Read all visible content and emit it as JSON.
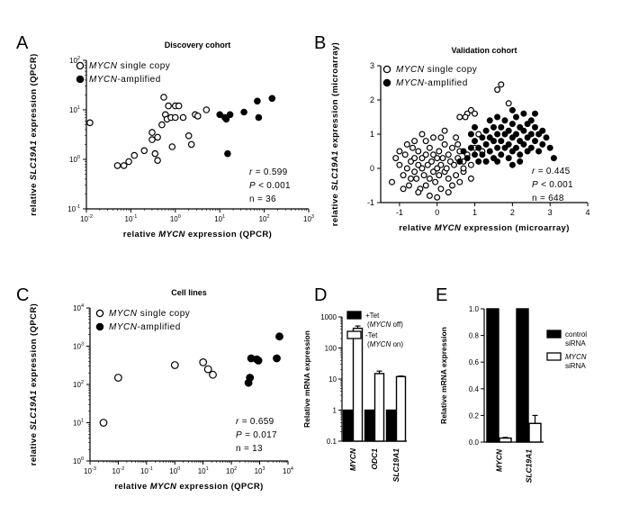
{
  "chart_data": [
    {
      "panel": "A",
      "type": "scatter",
      "title": "Discovery cohort",
      "xlabel": "relative MYCN expression (QPCR)",
      "ylabel": "relative SLC19A1 expression (QPCR)",
      "xscale": "log",
      "yscale": "log",
      "xlim": [
        0.01,
        1000
      ],
      "ylim": [
        0.1,
        100
      ],
      "xticks": [
        0.01,
        0.1,
        1,
        10,
        100,
        1000
      ],
      "yticks": [
        0.1,
        1,
        10,
        100
      ],
      "legend_position": "top-left",
      "series": [
        {
          "name": "MYCN single copy",
          "marker": "open-circle",
          "points": [
            [
              0.012,
              5.5
            ],
            [
              0.05,
              0.75
            ],
            [
              0.07,
              0.75
            ],
            [
              0.09,
              0.9
            ],
            [
              0.12,
              1.2
            ],
            [
              0.2,
              1.5
            ],
            [
              0.3,
              3.5
            ],
            [
              0.3,
              2.5
            ],
            [
              0.35,
              1.3
            ],
            [
              0.4,
              0.95
            ],
            [
              0.4,
              2.8
            ],
            [
              0.5,
              5
            ],
            [
              0.55,
              18
            ],
            [
              0.6,
              8
            ],
            [
              0.65,
              6.5
            ],
            [
              0.7,
              12
            ],
            [
              0.8,
              7
            ],
            [
              0.85,
              1.8
            ],
            [
              1,
              12
            ],
            [
              1,
              7
            ],
            [
              1.2,
              12
            ],
            [
              1.5,
              7
            ],
            [
              2,
              3
            ],
            [
              2.3,
              2
            ],
            [
              2.8,
              8
            ],
            [
              3.2,
              7.5
            ],
            [
              5,
              10
            ]
          ]
        },
        {
          "name": "MYCN-amplified",
          "marker": "filled-circle",
          "points": [
            [
              10,
              8
            ],
            [
              13,
              7
            ],
            [
              14,
              6.5
            ],
            [
              15,
              1.3
            ],
            [
              17,
              8
            ],
            [
              35,
              9
            ],
            [
              70,
              15
            ],
            [
              75,
              7
            ],
            [
              150,
              17
            ]
          ]
        }
      ],
      "annotations": [
        {
          "label": "r",
          "op": "=",
          "value": "0.599"
        },
        {
          "label": "P",
          "op": "<",
          "value": "0.001"
        },
        {
          "label": "n",
          "op": "=",
          "value": "36"
        }
      ]
    },
    {
      "panel": "B",
      "type": "scatter",
      "title": "Validation cohort",
      "xlabel": "relative MYCN expression (microarray)",
      "ylabel": "relative SLC19A1 expression (microarray)",
      "xscale": "linear",
      "yscale": "linear",
      "xlim": [
        -1.5,
        4
      ],
      "ylim": [
        -1,
        3
      ],
      "xticks": [
        -1,
        0,
        1,
        2,
        3,
        4
      ],
      "yticks": [
        -1,
        0,
        1,
        2,
        3
      ],
      "legend_position": "top-left",
      "series": [
        {
          "name": "MYCN single copy",
          "marker": "open-circle",
          "points": [
            [
              -1.2,
              -0.4
            ],
            [
              -1.1,
              0.3
            ],
            [
              -1,
              0.1
            ],
            [
              -0.9,
              -0.2
            ],
            [
              -0.85,
              0.4
            ],
            [
              -0.8,
              0.0
            ],
            [
              -0.75,
              -0.5
            ],
            [
              -0.7,
              0.2
            ],
            [
              -0.65,
              0.6
            ],
            [
              -0.6,
              -0.1
            ],
            [
              -0.6,
              0.3
            ],
            [
              -0.55,
              -0.3
            ],
            [
              -0.5,
              0.1
            ],
            [
              -0.5,
              0.5
            ],
            [
              -0.45,
              -0.6
            ],
            [
              -0.4,
              0.0
            ],
            [
              -0.4,
              0.3
            ],
            [
              -0.35,
              -0.2
            ],
            [
              -0.3,
              0.4
            ],
            [
              -0.3,
              -0.5
            ],
            [
              -0.25,
              0.1
            ],
            [
              -0.2,
              -0.3
            ],
            [
              -0.2,
              0.6
            ],
            [
              -0.15,
              0.2
            ],
            [
              -0.1,
              -0.1
            ],
            [
              -0.1,
              0.4
            ],
            [
              -0.05,
              -0.4
            ],
            [
              0,
              0.0
            ],
            [
              0,
              0.3
            ],
            [
              0.05,
              -0.2
            ],
            [
              0.05,
              0.5
            ],
            [
              0.1,
              0.1
            ],
            [
              0.1,
              -0.6
            ],
            [
              0.15,
              0.3
            ],
            [
              0.2,
              -0.1
            ],
            [
              0.2,
              0.7
            ],
            [
              0.25,
              0.0
            ],
            [
              0.3,
              0.4
            ],
            [
              0.3,
              -0.3
            ],
            [
              0.35,
              0.2
            ],
            [
              0.4,
              -0.5
            ],
            [
              0.4,
              0.6
            ],
            [
              0.45,
              0.1
            ],
            [
              0.5,
              -0.2
            ],
            [
              0.5,
              0.9
            ],
            [
              0.55,
              0.3
            ],
            [
              0.6,
              -0.4
            ],
            [
              0.6,
              0.5
            ],
            [
              -0.3,
              0.8
            ],
            [
              -0.1,
              0.9
            ],
            [
              0.2,
              1.1
            ],
            [
              -0.6,
              0.8
            ],
            [
              -0.2,
              -0.8
            ],
            [
              0.0,
              -0.85
            ],
            [
              0.3,
              -0.7
            ],
            [
              -0.5,
              -0.7
            ],
            [
              0.7,
              0.2
            ],
            [
              0.7,
              -0.1
            ],
            [
              0.8,
              0.4
            ],
            [
              0.9,
              0.1
            ],
            [
              -0.9,
              -0.6
            ],
            [
              -1.0,
              0.5
            ],
            [
              0.1,
              0.9
            ],
            [
              -0.4,
              1.0
            ],
            [
              0.6,
              1.5
            ],
            [
              0.8,
              1.6
            ],
            [
              1.6,
              2.3
            ],
            [
              1.7,
              2.45
            ],
            [
              1.9,
              1.9
            ],
            [
              0.9,
              1.7
            ],
            [
              1.0,
              1.6
            ],
            [
              0.7,
              0.0
            ],
            [
              0.9,
              -0.3
            ],
            [
              1.0,
              0.6
            ],
            [
              1.1,
              1.0
            ],
            [
              0.55,
              0.7
            ],
            [
              1.2,
              0.5
            ],
            [
              0.75,
              1.5
            ],
            [
              -0.7,
              -0.3
            ],
            [
              -0.8,
              0.7
            ]
          ]
        },
        {
          "name": "MYCN-amplified",
          "marker": "filled-circle",
          "points": [
            [
              0.6,
              0.2
            ],
            [
              0.7,
              0.5
            ],
            [
              0.8,
              0.3
            ],
            [
              0.9,
              0.6
            ],
            [
              1.0,
              0.4
            ],
            [
              1.0,
              0.8
            ],
            [
              1.1,
              0.2
            ],
            [
              1.1,
              0.6
            ],
            [
              1.2,
              0.9
            ],
            [
              1.2,
              0.4
            ],
            [
              1.3,
              0.7
            ],
            [
              1.3,
              1.1
            ],
            [
              1.4,
              0.5
            ],
            [
              1.4,
              0.9
            ],
            [
              1.5,
              0.3
            ],
            [
              1.5,
              0.8
            ],
            [
              1.5,
              1.2
            ],
            [
              1.6,
              0.6
            ],
            [
              1.6,
              1.0
            ],
            [
              1.6,
              1.5
            ],
            [
              1.7,
              0.4
            ],
            [
              1.7,
              0.8
            ],
            [
              1.7,
              1.2
            ],
            [
              1.8,
              0.6
            ],
            [
              1.8,
              1.0
            ],
            [
              1.8,
              1.4
            ],
            [
              1.9,
              0.3
            ],
            [
              1.9,
              0.7
            ],
            [
              1.9,
              1.1
            ],
            [
              2.0,
              0.5
            ],
            [
              2.0,
              0.9
            ],
            [
              2.0,
              1.3
            ],
            [
              2.0,
              1.7
            ],
            [
              2.1,
              0.6
            ],
            [
              2.1,
              1.0
            ],
            [
              2.1,
              1.5
            ],
            [
              2.2,
              0.4
            ],
            [
              2.2,
              0.8
            ],
            [
              2.2,
              1.2
            ],
            [
              2.3,
              0.7
            ],
            [
              2.3,
              1.1
            ],
            [
              2.3,
              1.6
            ],
            [
              2.4,
              0.5
            ],
            [
              2.4,
              0.9
            ],
            [
              2.4,
              1.3
            ],
            [
              2.5,
              0.6
            ],
            [
              2.5,
              1.0
            ],
            [
              2.5,
              1.4
            ],
            [
              2.6,
              0.8
            ],
            [
              2.6,
              1.2
            ],
            [
              2.7,
              0.5
            ],
            [
              2.7,
              1.0
            ],
            [
              2.8,
              0.7
            ],
            [
              2.8,
              1.1
            ],
            [
              2.9,
              0.9
            ],
            [
              3.0,
              0.6
            ],
            [
              3.1,
              0.3
            ],
            [
              1.3,
              0.2
            ],
            [
              1.0,
              1.2
            ],
            [
              0.9,
              1.0
            ],
            [
              2.2,
              0.2
            ],
            [
              1.6,
              0.2
            ],
            [
              1.4,
              1.4
            ],
            [
              2.0,
              0.1
            ],
            [
              2.6,
              1.6
            ]
          ]
        }
      ],
      "annotations": [
        {
          "label": "r",
          "op": "=",
          "value": "0.445"
        },
        {
          "label": "P",
          "op": "<",
          "value": "0.001"
        },
        {
          "label": "n",
          "op": "=",
          "value": "648"
        }
      ]
    },
    {
      "panel": "C",
      "type": "scatter",
      "title": "Cell lines",
      "xlabel": "relative MYCN expression (QPCR)",
      "ylabel": "relative SLC19A1 expression (QPCR)",
      "xscale": "log",
      "yscale": "log",
      "xlim": [
        0.001,
        10000
      ],
      "ylim": [
        1,
        10000
      ],
      "xticks": [
        0.001,
        0.01,
        0.1,
        1,
        10,
        100,
        1000,
        10000
      ],
      "yticks": [
        1,
        10,
        100,
        1000,
        10000
      ],
      "legend_position": "top-left",
      "series": [
        {
          "name": "MYCN single copy",
          "marker": "open-circle",
          "points": [
            [
              0.003,
              10
            ],
            [
              0.01,
              150
            ],
            [
              1,
              320
            ],
            [
              10,
              380
            ],
            [
              15,
              250
            ],
            [
              22,
              180
            ]
          ]
        },
        {
          "name": "MYCN-amplified",
          "marker": "filled-circle",
          "points": [
            [
              400,
              110
            ],
            [
              450,
              150
            ],
            [
              500,
              480
            ],
            [
              800,
              450
            ],
            [
              900,
              420
            ],
            [
              4000,
              480
            ],
            [
              5000,
              1800
            ]
          ]
        }
      ],
      "annotations": [
        {
          "label": "r",
          "op": "=",
          "value": "0.659"
        },
        {
          "label": "P",
          "op": "=",
          "value": "0.017"
        },
        {
          "label": "n",
          "op": "=",
          "value": "13"
        }
      ]
    },
    {
      "panel": "D",
      "type": "bar",
      "ylabel": "Relative mRNA expression",
      "yscale": "log",
      "ylim": [
        0.1,
        1000
      ],
      "yticks": [
        0.1,
        1,
        10,
        100,
        1000
      ],
      "categories": [
        "MYCN",
        "ODC1",
        "SLC19A1"
      ],
      "legend_position": "top",
      "series": [
        {
          "name": "+Tet",
          "name_note": "(MYCN off)",
          "fill": "filled",
          "values": [
            1,
            1,
            1
          ],
          "errors": [
            0,
            0,
            0
          ]
        },
        {
          "name": "-Tet",
          "name_note": "(MYCN on)",
          "fill": "open",
          "values": [
            430,
            15,
            12
          ],
          "errors": [
            80,
            3,
            0.5
          ]
        }
      ]
    },
    {
      "panel": "E",
      "type": "bar",
      "ylabel": "Relative mRNA expression",
      "yscale": "linear",
      "ylim": [
        0,
        1.0
      ],
      "yticks": [
        0.0,
        0.2,
        0.4,
        0.6,
        0.8,
        1.0
      ],
      "categories": [
        "MYCN",
        "SLC19A1"
      ],
      "legend_position": "right",
      "series": [
        {
          "name": "control",
          "name_note": "siRNA",
          "fill": "filled",
          "values": [
            1.0,
            1.0
          ],
          "errors": [
            0,
            0
          ]
        },
        {
          "name": "MYCN",
          "name_note": "siRNA",
          "fill": "open",
          "values": [
            0.03,
            0.14
          ],
          "errors": [
            0.005,
            0.06
          ]
        }
      ]
    }
  ],
  "colors": {
    "ink": "#000000",
    "background": "#ffffff"
  }
}
